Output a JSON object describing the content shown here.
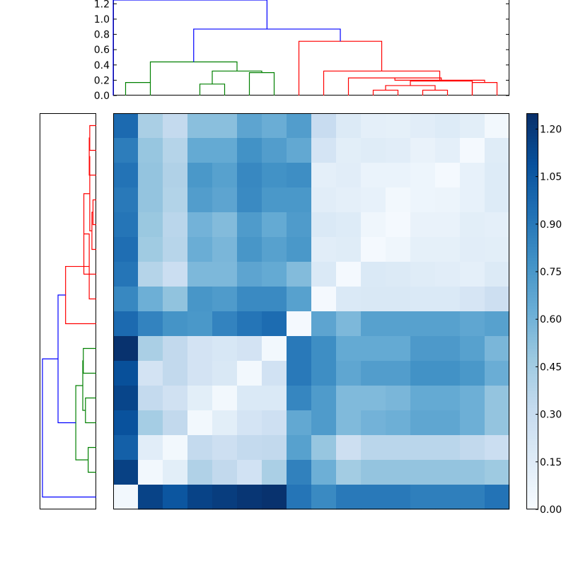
{
  "chart_data": [
    {
      "type": "dendrogram",
      "orientation": "top",
      "ylim": [
        0,
        1.25
      ],
      "yticks": [
        0.0,
        0.2,
        0.4,
        0.6,
        0.8,
        1.0,
        1.2
      ],
      "ytick_labels": [
        "0.0",
        "0.2",
        "0.4",
        "0.6",
        "0.8",
        "1.0",
        "1.2"
      ],
      "leaf_count": 16,
      "cluster_colors": {
        "root": "#0000ff",
        "green": "#008000",
        "red": "#ff0000"
      },
      "links": [
        {
          "xs": [
            5,
            5,
            15,
            15
          ],
          "ys": [
            0,
            0.17,
            0.17,
            0
          ],
          "color": "green"
        },
        {
          "xs": [
            35,
            35,
            45,
            45
          ],
          "ys": [
            0,
            0.15,
            0.15,
            0
          ],
          "color": "green"
        },
        {
          "xs": [
            55,
            55,
            65,
            65
          ],
          "ys": [
            0,
            0.3,
            0.3,
            0
          ],
          "color": "green"
        },
        {
          "xs": [
            40,
            40,
            60,
            60
          ],
          "ys": [
            0.15,
            0.32,
            0.32,
            0.3
          ],
          "color": "green"
        },
        {
          "xs": [
            15,
            15,
            50,
            50
          ],
          "ys": [
            0.17,
            0.44,
            0.44,
            0.32
          ],
          "color": "green"
        },
        {
          "xs": [
            105,
            105,
            115,
            115
          ],
          "ys": [
            0,
            0.07,
            0.07,
            0
          ],
          "color": "red"
        },
        {
          "xs": [
            125,
            125,
            135,
            135
          ],
          "ys": [
            0,
            0.07,
            0.07,
            0
          ],
          "color": "red"
        },
        {
          "xs": [
            110,
            110,
            130,
            130
          ],
          "ys": [
            0.07,
            0.13,
            0.13,
            0.07
          ],
          "color": "red"
        },
        {
          "xs": [
            120,
            120,
            145,
            145
          ],
          "ys": [
            0.13,
            0.19,
            0.19,
            0
          ],
          "color": "red"
        },
        {
          "xs": [
            95,
            95,
            132.5,
            132.5
          ],
          "ys": [
            0,
            0.23,
            0.23,
            0.19
          ],
          "color": "red"
        },
        {
          "xs": [
            145,
            145,
            155,
            155
          ],
          "ys": [
            0,
            0.17,
            0.17,
            0
          ],
          "color": "red"
        },
        {
          "xs": [
            113.75,
            113.75,
            150,
            150
          ],
          "ys": [
            0.23,
            0.2,
            0.2,
            0.17
          ],
          "color": "red"
        },
        {
          "xs": [
            85,
            85,
            131.875,
            131.875
          ],
          "ys": [
            0,
            0.32,
            0.32,
            0.2
          ],
          "color": "red"
        },
        {
          "xs": [
            75,
            75,
            108.4375,
            108.4375
          ],
          "ys": [
            0,
            0.71,
            0.71,
            0.32
          ],
          "color": "red"
        },
        {
          "xs": [
            32.5,
            32.5,
            91.71875,
            91.71875
          ],
          "ys": [
            0.44,
            0.87,
            0.87,
            0.71
          ],
          "color": "root"
        },
        {
          "xs": [
            0,
            0,
            62.109375,
            62.109375
          ],
          "ys": [
            0,
            1.25,
            1.25,
            0.87
          ],
          "color": "root"
        }
      ]
    },
    {
      "type": "dendrogram",
      "orientation": "left",
      "leaf_count": 16,
      "links": [
        {
          "ys": [
            5,
            5,
            15,
            15
          ],
          "xs": [
            0,
            0.12,
            0.12,
            0
          ],
          "color": "red"
        },
        {
          "ys": [
            10,
            10,
            25,
            25
          ],
          "xs": [
            0.12,
            0.13,
            0.13,
            0
          ],
          "color": "red"
        },
        {
          "ys": [
            35,
            35,
            45,
            45
          ],
          "xs": [
            0,
            0.06,
            0.06,
            0
          ],
          "color": "red"
        },
        {
          "ys": [
            40,
            40,
            55,
            55
          ],
          "xs": [
            0.06,
            0.08,
            0.08,
            0
          ],
          "color": "red"
        },
        {
          "ys": [
            17.5,
            17.5,
            47.5,
            47.5
          ],
          "xs": [
            0.13,
            0.12,
            0.12,
            0.08
          ],
          "color": "red"
        },
        {
          "ys": [
            32.5,
            32.5,
            65,
            65
          ],
          "xs": [
            0.12,
            0.23,
            0.23,
            0
          ],
          "color": "red"
        },
        {
          "ys": [
            48.75,
            48.75,
            75,
            75
          ],
          "xs": [
            0.23,
            0.13,
            0.13,
            0
          ],
          "color": "red"
        },
        {
          "ys": [
            61.875,
            61.875,
            85,
            85
          ],
          "xs": [
            0.13,
            0.57,
            0.57,
            0
          ],
          "color": "red"
        },
        {
          "ys": [
            95,
            95,
            105,
            105
          ],
          "xs": [
            0,
            0.24,
            0.24,
            0
          ],
          "color": "green"
        },
        {
          "ys": [
            115,
            115,
            125,
            125
          ],
          "xs": [
            0,
            0.2,
            0.2,
            0
          ],
          "color": "green"
        },
        {
          "ys": [
            100,
            100,
            120,
            120
          ],
          "xs": [
            0.24,
            0.25,
            0.25,
            0.2
          ],
          "color": "green"
        },
        {
          "ys": [
            135,
            135,
            145,
            145
          ],
          "xs": [
            0,
            0.15,
            0.15,
            0
          ],
          "color": "green"
        },
        {
          "ys": [
            110,
            110,
            140,
            140
          ],
          "xs": [
            0.25,
            0.38,
            0.38,
            0.15
          ],
          "color": "green"
        },
        {
          "ys": [
            73.4375,
            73.4375,
            125,
            125
          ],
          "xs": [
            0.57,
            0.71,
            0.71,
            0.38
          ],
          "color": "root"
        },
        {
          "ys": [
            99.21875,
            99.21875,
            155,
            155
          ],
          "xs": [
            0.71,
            1.0,
            1.0,
            0
          ],
          "color": "root"
        }
      ]
    },
    {
      "type": "heatmap",
      "rows": 16,
      "cols": 16,
      "vmin": 0.0,
      "vmax": 1.25,
      "colormap": "Blues",
      "values": [
        [
          0.97,
          0.42,
          0.32,
          0.53,
          0.53,
          0.68,
          0.63,
          0.72,
          0.3,
          0.17,
          0.12,
          0.11,
          0.14,
          0.16,
          0.13,
          0.03
        ],
        [
          0.88,
          0.49,
          0.38,
          0.65,
          0.65,
          0.78,
          0.72,
          0.66,
          0.22,
          0.13,
          0.15,
          0.14,
          0.09,
          0.12,
          0.02,
          0.15
        ],
        [
          0.93,
          0.5,
          0.4,
          0.75,
          0.7,
          0.83,
          0.78,
          0.8,
          0.12,
          0.14,
          0.08,
          0.08,
          0.06,
          0.02,
          0.1,
          0.16
        ],
        [
          0.9,
          0.5,
          0.39,
          0.72,
          0.68,
          0.82,
          0.75,
          0.75,
          0.14,
          0.12,
          0.1,
          0.03,
          0.06,
          0.07,
          0.1,
          0.16
        ],
        [
          0.92,
          0.48,
          0.36,
          0.6,
          0.55,
          0.73,
          0.65,
          0.73,
          0.18,
          0.16,
          0.05,
          0.02,
          0.09,
          0.09,
          0.13,
          0.12
        ],
        [
          0.95,
          0.46,
          0.37,
          0.63,
          0.58,
          0.76,
          0.7,
          0.75,
          0.14,
          0.15,
          0.02,
          0.05,
          0.11,
          0.11,
          0.14,
          0.13
        ],
        [
          0.92,
          0.38,
          0.28,
          0.57,
          0.57,
          0.68,
          0.65,
          0.55,
          0.18,
          0.02,
          0.18,
          0.17,
          0.15,
          0.14,
          0.12,
          0.17
        ],
        [
          0.83,
          0.62,
          0.51,
          0.76,
          0.73,
          0.82,
          0.82,
          0.7,
          0.02,
          0.18,
          0.19,
          0.19,
          0.18,
          0.18,
          0.21,
          0.27
        ],
        [
          0.97,
          0.85,
          0.77,
          0.75,
          0.85,
          0.92,
          0.96,
          0.02,
          0.68,
          0.57,
          0.7,
          0.7,
          0.7,
          0.7,
          0.67,
          0.7
        ],
        [
          1.24,
          0.42,
          0.33,
          0.23,
          0.2,
          0.23,
          0.03,
          0.9,
          0.8,
          0.65,
          0.65,
          0.65,
          0.74,
          0.74,
          0.7,
          0.58
        ],
        [
          1.1,
          0.23,
          0.33,
          0.23,
          0.19,
          0.03,
          0.24,
          0.9,
          0.8,
          0.67,
          0.72,
          0.72,
          0.78,
          0.78,
          0.75,
          0.63
        ],
        [
          1.15,
          0.32,
          0.25,
          0.13,
          0.03,
          0.18,
          0.18,
          0.84,
          0.73,
          0.56,
          0.56,
          0.58,
          0.65,
          0.65,
          0.62,
          0.5
        ],
        [
          1.09,
          0.44,
          0.33,
          0.03,
          0.13,
          0.22,
          0.26,
          0.66,
          0.73,
          0.56,
          0.6,
          0.62,
          0.67,
          0.67,
          0.62,
          0.5
        ],
        [
          1.02,
          0.14,
          0.03,
          0.32,
          0.27,
          0.32,
          0.33,
          0.7,
          0.49,
          0.27,
          0.36,
          0.36,
          0.36,
          0.36,
          0.33,
          0.28
        ],
        [
          1.17,
          0.03,
          0.13,
          0.4,
          0.33,
          0.24,
          0.42,
          0.86,
          0.62,
          0.45,
          0.5,
          0.5,
          0.5,
          0.5,
          0.5,
          0.47
        ],
        [
          0.03,
          1.16,
          1.07,
          1.16,
          1.19,
          1.22,
          1.24,
          0.92,
          0.82,
          0.9,
          0.9,
          0.9,
          0.87,
          0.87,
          0.87,
          0.93
        ]
      ]
    },
    {
      "type": "colorbar",
      "vmin": 0.0,
      "vmax": 1.25,
      "ticks": [
        0.0,
        0.15,
        0.3,
        0.45,
        0.6,
        0.75,
        0.9,
        1.05,
        1.2
      ],
      "tick_labels": [
        "0.00",
        "0.15",
        "0.30",
        "0.45",
        "0.60",
        "0.75",
        "0.90",
        "1.05",
        "1.20"
      ]
    }
  ]
}
